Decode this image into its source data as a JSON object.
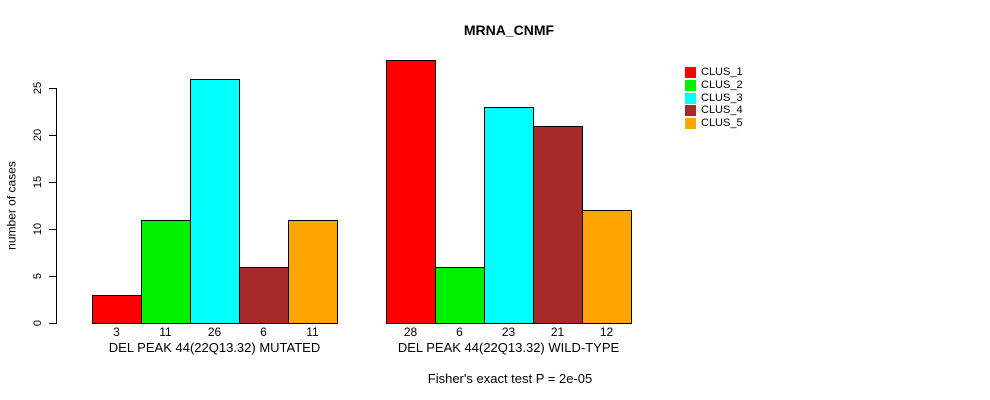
{
  "title": "MRNA_CNMF",
  "footer": "Fisher's exact test P = 2e-05",
  "chart_data": {
    "type": "bar",
    "title": "MRNA_CNMF",
    "xlabel": "",
    "ylabel": "number of cases",
    "yticks": [
      0,
      5,
      10,
      15,
      20,
      25
    ],
    "ylim": [
      0,
      28
    ],
    "grid": false,
    "legend_position": "right",
    "series": [
      {
        "name": "CLUS_1",
        "color": "#ff0000"
      },
      {
        "name": "CLUS_2",
        "color": "#00ee00"
      },
      {
        "name": "CLUS_3",
        "color": "#00ffff"
      },
      {
        "name": "CLUS_4",
        "color": "#a52a2a"
      },
      {
        "name": "CLUS_5",
        "color": "#ffa500"
      }
    ],
    "groups": [
      {
        "label": "DEL PEAK 44(22Q13.32) MUTATED",
        "values": [
          3,
          11,
          26,
          6,
          11
        ]
      },
      {
        "label": "DEL PEAK 44(22Q13.32) WILD-TYPE",
        "values": [
          28,
          6,
          23,
          21,
          12
        ]
      }
    ],
    "annotation": "Fisher's exact test P = 2e-05"
  }
}
